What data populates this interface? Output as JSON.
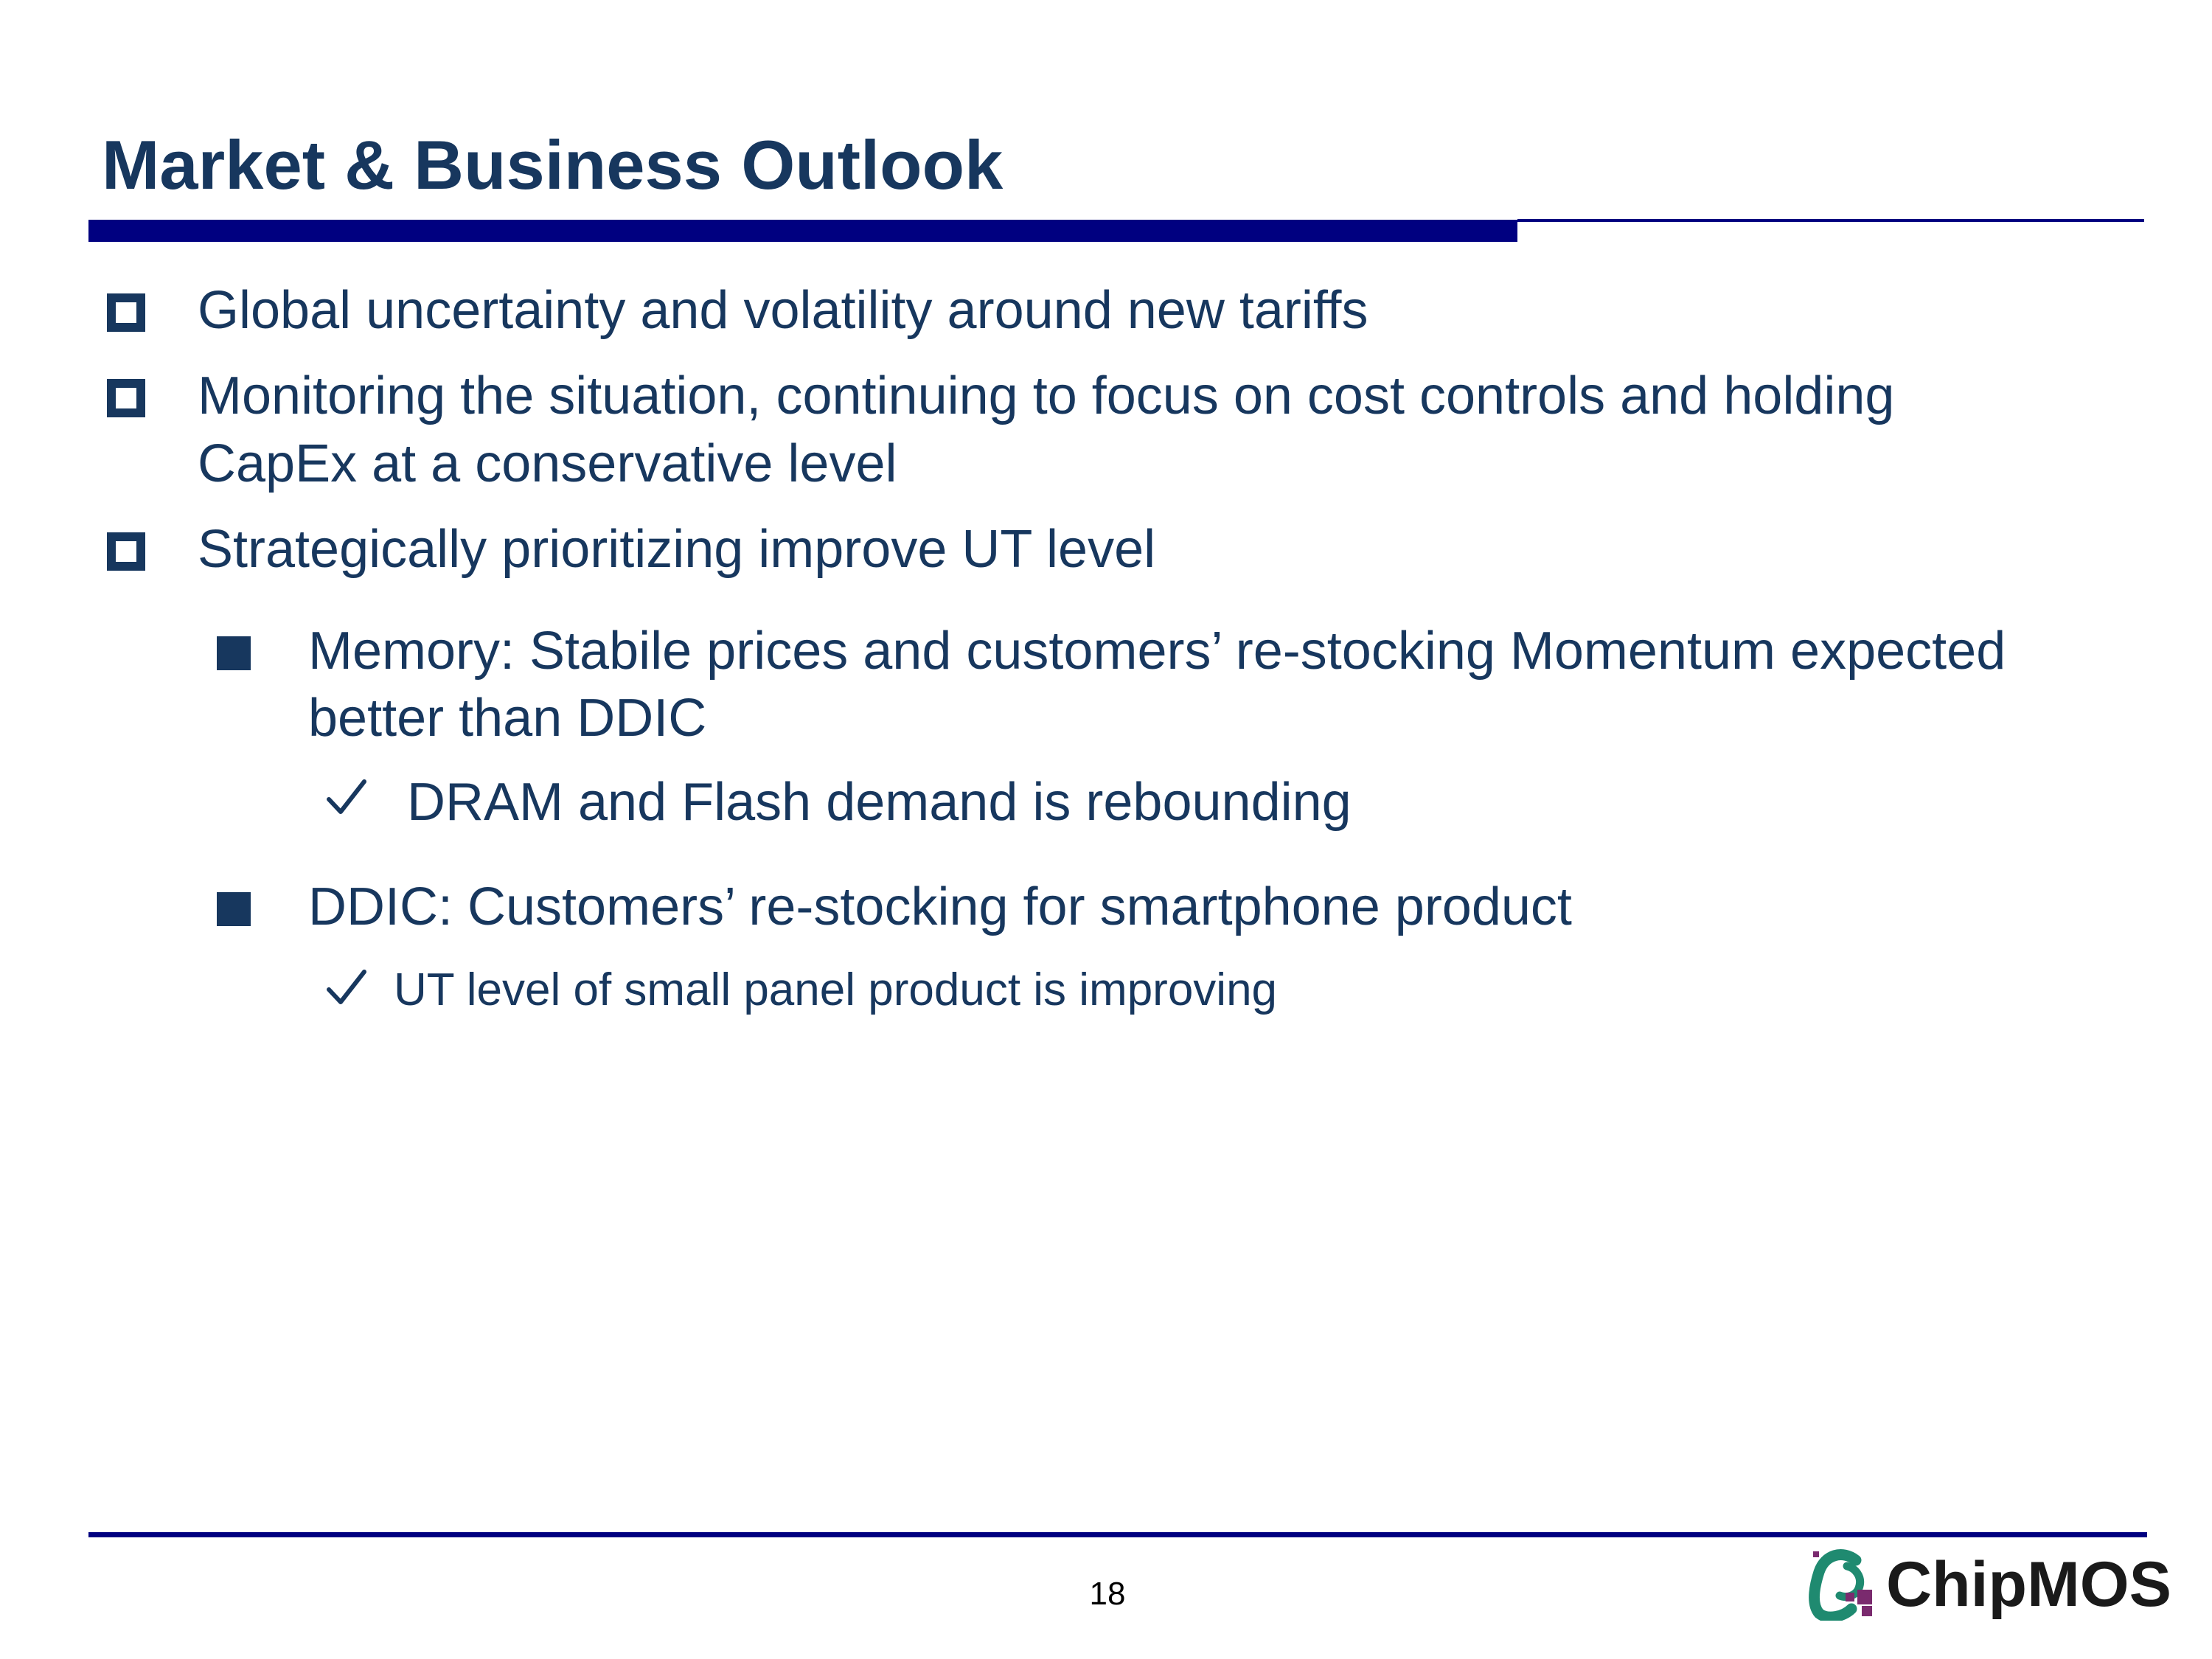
{
  "slide": {
    "title": "Market & Business Outlook",
    "page_number": "18"
  },
  "bullets": [
    {
      "lines": [
        "Global uncertainty and volatility around new tariffs"
      ]
    },
    {
      "lines": [
        "Monitoring the situation, continuing to focus on cost controls and holding",
        "CapEx at a conservative level"
      ]
    },
    {
      "lines": [
        "Strategically prioritizing improve UT level"
      ],
      "sub_bullets": [
        {
          "lines": [
            "Memory: Stabile prices and customers’ re-stocking Momentum expected",
            "better than DDIC"
          ],
          "checks": [
            "DRAM and Flash demand is rebounding"
          ]
        },
        {
          "lines": [
            "DDIC: Customers’ re-stocking for smartphone product"
          ],
          "checks": [
            "UT level of small panel product is improving"
          ]
        }
      ]
    }
  ],
  "logo": {
    "text": "ChipMOS",
    "mark_colors": [
      "#1f8a70",
      "#7a2a6e"
    ]
  },
  "colors": {
    "text": "#17375e",
    "rule": "#000080"
  }
}
